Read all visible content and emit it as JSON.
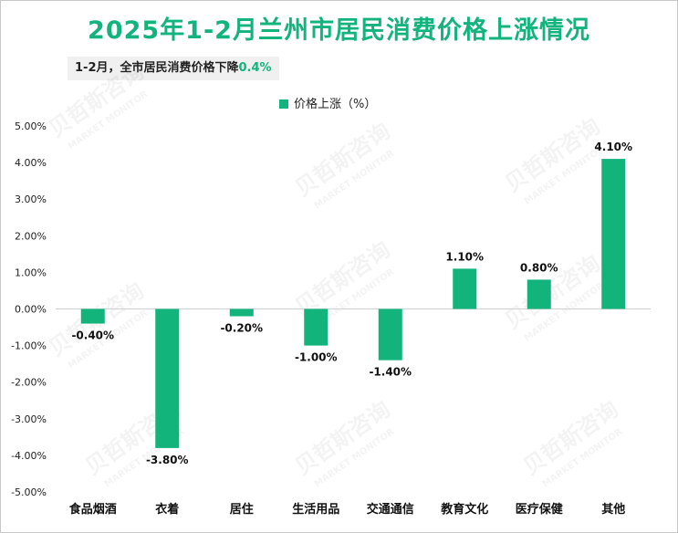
{
  "title": "2025年1-2月兰州市居民消费价格上涨情况",
  "subtitle_prefix": "1-2月，全市居民消费价格下降",
  "subtitle_value": "0.4%",
  "watermark_cn": "贝哲斯咨询",
  "watermark_en": "MARKET MONITOR",
  "colors": {
    "accent": "#13b47c",
    "bar": "#13b47c"
  },
  "chart_data": {
    "type": "bar",
    "categories": [
      "食品烟酒",
      "衣着",
      "居住",
      "生活用品",
      "交通通信",
      "教育文化",
      "医疗保健",
      "其他"
    ],
    "series": [
      {
        "name": "价格上涨（%）",
        "values": [
          -0.4,
          -3.8,
          -0.2,
          -1.0,
          -1.4,
          1.1,
          0.8,
          4.1
        ]
      }
    ],
    "data_labels": [
      "-0.40%",
      "-3.80%",
      "-0.20%",
      "-1.00%",
      "-1.40%",
      "1.10%",
      "0.80%",
      "4.10%"
    ],
    "ylim": [
      -5.0,
      5.0
    ],
    "yticks": [
      5.0,
      4.0,
      3.0,
      2.0,
      1.0,
      0.0,
      -1.0,
      -2.0,
      -3.0,
      -4.0,
      -5.0
    ],
    "ytick_labels": [
      "5.00%",
      "4.00%",
      "3.00%",
      "2.00%",
      "1.00%",
      "0.00%",
      "-1.00%",
      "-2.00%",
      "-3.00%",
      "-4.00%",
      "-5.00%"
    ],
    "grid": false,
    "legend": "top-center",
    "xlabel": "",
    "ylabel": ""
  }
}
